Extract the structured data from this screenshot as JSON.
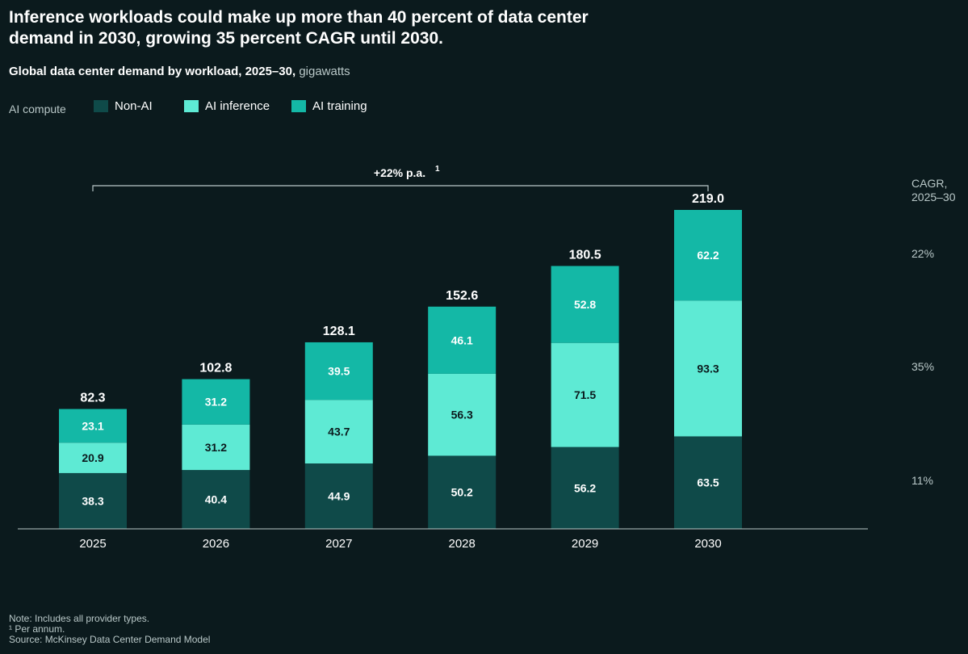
{
  "title": "Inference workloads could make up more than 40 percent of data center demand in 2030, growing 35 percent CAGR until 2030.",
  "subtitle": "Global data center demand by workload, 2025–30,",
  "subtitle_unit": "gigawatts",
  "legend": {
    "label": "AI compute",
    "items": [
      {
        "name": "Non-AI",
        "color": "#0f4a49"
      },
      {
        "name": "AI inference",
        "color": "#5eead4"
      },
      {
        "name": "AI training",
        "color": "#14b8a6"
      }
    ]
  },
  "cagr": {
    "header_line1": "CAGR,",
    "header_line2": "2025–30",
    "training": "22%",
    "inference": "35%",
    "non_ai": "11%"
  },
  "growth_annotation": "+22% p.a.",
  "growth_footnote_mark": "1",
  "notes": {
    "note": "Note: Includes all provider types.",
    "footnote": "¹  Per annum.",
    "source": "Source: McKinsey Data Center Demand Model"
  },
  "chart_data": {
    "type": "bar",
    "stacked": true,
    "categories": [
      "2025",
      "2026",
      "2027",
      "2028",
      "2029",
      "2030"
    ],
    "series": [
      {
        "name": "Non-AI",
        "values": [
          38.3,
          40.4,
          44.9,
          50.2,
          56.2,
          63.5
        ],
        "color": "#0f4a49",
        "label_color": "#ffffff"
      },
      {
        "name": "AI inference",
        "values": [
          20.9,
          31.2,
          43.7,
          56.3,
          71.5,
          93.3
        ],
        "color": "#5eead4",
        "label_color": "#0b1a1d"
      },
      {
        "name": "AI training",
        "values": [
          23.1,
          31.2,
          39.5,
          46.1,
          52.8,
          62.2
        ],
        "color": "#14b8a6",
        "label_color": "#ffffff"
      }
    ],
    "totals": [
      "82.3",
      "102.8",
      "128.1",
      "152.6",
      "180.5",
      "219.0"
    ],
    "ylim": [
      0,
      219.0
    ],
    "grid": false
  }
}
